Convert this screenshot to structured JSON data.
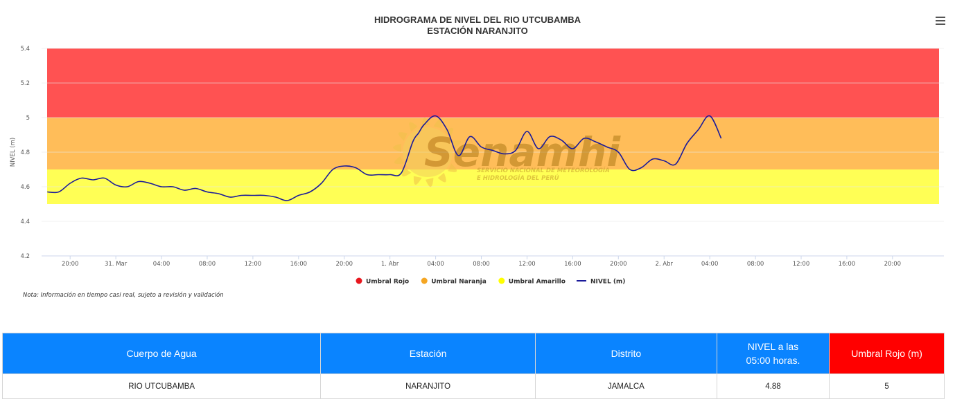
{
  "chart_data": {
    "type": "line",
    "title": "HIDROGRAMA DE NIVEL DEL RIO UTCUBAMBA",
    "subtitle": "ESTACIÓN NARANJITO",
    "ylabel": "NIVEL (m)",
    "xlabel": "",
    "ylim": [
      4.2,
      5.4
    ],
    "yticks": [
      4.2,
      4.4,
      4.6,
      4.8,
      5,
      5.2,
      5.4
    ],
    "ytick_labels": [
      "4.2",
      "4.4",
      "4.6",
      "4.8",
      "5",
      "5.2",
      "5.4"
    ],
    "xlim_hours": [
      -2.5,
      76.5
    ],
    "xtick_labels": [
      {
        "h": 0,
        "label": "20:00"
      },
      {
        "h": 4,
        "label": "31. Mar"
      },
      {
        "h": 8,
        "label": "04:00"
      },
      {
        "h": 12,
        "label": "08:00"
      },
      {
        "h": 16,
        "label": "12:00"
      },
      {
        "h": 20,
        "label": "16:00"
      },
      {
        "h": 24,
        "label": "20:00"
      },
      {
        "h": 28,
        "label": "1. Abr"
      },
      {
        "h": 32,
        "label": "04:00"
      },
      {
        "h": 36,
        "label": "08:00"
      },
      {
        "h": 40,
        "label": "12:00"
      },
      {
        "h": 44,
        "label": "16:00"
      },
      {
        "h": 48,
        "label": "20:00"
      },
      {
        "h": 52,
        "label": "2. Abr"
      },
      {
        "h": 56,
        "label": "04:00"
      },
      {
        "h": 60,
        "label": "08:00"
      },
      {
        "h": 64,
        "label": "12:00"
      },
      {
        "h": 68,
        "label": "16:00"
      },
      {
        "h": 72,
        "label": "20:00"
      }
    ],
    "grid": true,
    "legend_position": "bottom",
    "bands": [
      {
        "name": "Umbral Rojo",
        "from": 5.0,
        "to": 5.4,
        "color": "#ff5252",
        "legend_color": "#e8171e"
      },
      {
        "name": "Umbral Naranja",
        "from": 4.7,
        "to": 5.0,
        "color": "#ffbd59",
        "legend_color": "#f5a623"
      },
      {
        "name": "Umbral Amarillo",
        "from": 4.5,
        "to": 4.7,
        "color": "#ffff55",
        "legend_color": "#ffff00"
      }
    ],
    "series": [
      {
        "name": "NIVEL (m)",
        "color": "#1a1a9a",
        "x": [
          -2,
          -1,
          0,
          1,
          2,
          3,
          4,
          5,
          6,
          7,
          8,
          9,
          10,
          11,
          12,
          13,
          14,
          15,
          16,
          17,
          18,
          19,
          20,
          21,
          22,
          23,
          24,
          25,
          26,
          27,
          28,
          29,
          30,
          30.5,
          31,
          32,
          33,
          34,
          35,
          36,
          37,
          38,
          39,
          40,
          41,
          42,
          43,
          44,
          45,
          46,
          47,
          48,
          49,
          50,
          51,
          52,
          53,
          54,
          55,
          56,
          57
        ],
        "y": [
          4.57,
          4.57,
          4.62,
          4.65,
          4.64,
          4.65,
          4.61,
          4.6,
          4.63,
          4.62,
          4.6,
          4.6,
          4.58,
          4.59,
          4.57,
          4.56,
          4.54,
          4.55,
          4.55,
          4.55,
          4.54,
          4.52,
          4.55,
          4.57,
          4.62,
          4.7,
          4.72,
          4.71,
          4.67,
          4.67,
          4.67,
          4.68,
          4.86,
          4.91,
          4.96,
          5.01,
          4.93,
          4.78,
          4.89,
          4.83,
          4.81,
          4.79,
          4.81,
          4.92,
          4.82,
          4.89,
          4.87,
          4.82,
          4.88,
          4.86,
          4.83,
          4.8,
          4.7,
          4.71,
          4.76,
          4.75,
          4.73,
          4.85,
          4.93,
          5.01,
          4.88
        ]
      }
    ]
  },
  "watermark": {
    "brand": "Senamhi",
    "line1": "SERVICIO NACIONAL DE METEOROLOGÍA",
    "line2": "E HIDROLOGÍA DEL PERÚ"
  },
  "note": "Nota: Información en tiempo casi real, sujeto a revisión y validación",
  "menu_icon": "hamburger-menu-icon",
  "table": {
    "headers": [
      {
        "label": "Cuerpo de Agua",
        "color": "#0a84ff"
      },
      {
        "label": "Estación",
        "color": "#0a84ff"
      },
      {
        "label": "Distrito",
        "color": "#0a84ff"
      },
      {
        "label": "NIVEL a las 05:00 horas.",
        "color": "#0a84ff"
      },
      {
        "label": "Umbral Rojo (m)",
        "color": "#ff0000"
      }
    ],
    "row": [
      "RIO UTCUBAMBA",
      "NARANJITO",
      "JAMALCA",
      "4.88",
      "5"
    ]
  }
}
